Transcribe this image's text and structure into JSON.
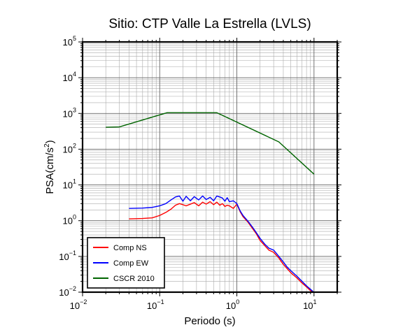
{
  "chart_data": {
    "type": "line",
    "title": "Sitio: CTP Valle La Estrella (LVLS)",
    "xlabel": "Periodo (s)",
    "ylabel": {
      "prefix": "PSA(cm/s",
      "sup": "2",
      "suffix": ")"
    },
    "x_scale": "log",
    "y_scale": "log",
    "xlim": [
      0.01,
      20
    ],
    "ylim": [
      0.01,
      100000
    ],
    "x_ticks": [
      {
        "base": "10",
        "exp": "−2",
        "value": 0.01
      },
      {
        "base": "10",
        "exp": "−1",
        "value": 0.1
      },
      {
        "base": "10",
        "exp": "0",
        "value": 1
      },
      {
        "base": "10",
        "exp": "1",
        "value": 10
      }
    ],
    "y_ticks": [
      {
        "base": "10",
        "exp": "−2",
        "value": 0.01
      },
      {
        "base": "10",
        "exp": "−1",
        "value": 0.1
      },
      {
        "base": "10",
        "exp": "0",
        "value": 1
      },
      {
        "base": "10",
        "exp": "1",
        "value": 10
      },
      {
        "base": "10",
        "exp": "2",
        "value": 100
      },
      {
        "base": "10",
        "exp": "3",
        "value": 1000
      },
      {
        "base": "10",
        "exp": "4",
        "value": 10000
      },
      {
        "base": "10",
        "exp": "5",
        "value": 100000
      }
    ],
    "grid": true,
    "legend_position": "bottom-left",
    "series": [
      {
        "name": "Comp NS",
        "color": "#ff0000",
        "x": [
          0.04,
          0.06,
          0.08,
          0.1,
          0.12,
          0.14,
          0.16,
          0.18,
          0.2,
          0.22,
          0.25,
          0.28,
          0.32,
          0.36,
          0.4,
          0.45,
          0.5,
          0.55,
          0.6,
          0.65,
          0.7,
          0.75,
          0.8,
          0.9,
          1.0,
          1.1,
          1.2,
          1.4,
          1.6,
          1.8,
          2.0,
          2.3,
          2.6,
          3.0,
          3.5,
          4.0,
          4.5,
          5.0,
          6.0,
          7.0,
          8.0,
          9.0,
          10.0
        ],
        "y": [
          1.12,
          1.15,
          1.2,
          1.4,
          1.7,
          2.1,
          2.7,
          3.0,
          2.8,
          2.6,
          2.9,
          3.2,
          2.6,
          3.3,
          2.9,
          3.4,
          2.8,
          3.3,
          2.7,
          3.0,
          2.5,
          2.7,
          2.6,
          2.2,
          2.9,
          1.8,
          1.3,
          0.9,
          0.6,
          0.42,
          0.28,
          0.2,
          0.15,
          0.13,
          0.09,
          0.06,
          0.045,
          0.035,
          0.025,
          0.018,
          0.014,
          0.011,
          0.0095
        ]
      },
      {
        "name": "Comp EW",
        "color": "#0000ff",
        "x": [
          0.04,
          0.06,
          0.08,
          0.1,
          0.12,
          0.14,
          0.16,
          0.18,
          0.2,
          0.22,
          0.25,
          0.28,
          0.32,
          0.36,
          0.4,
          0.45,
          0.5,
          0.55,
          0.6,
          0.65,
          0.7,
          0.75,
          0.8,
          0.9,
          1.0,
          1.1,
          1.2,
          1.4,
          1.6,
          1.8,
          2.0,
          2.3,
          2.6,
          3.0,
          3.5,
          4.0,
          4.5,
          5.0,
          6.0,
          7.0,
          8.0,
          9.0,
          10.0
        ],
        "y": [
          2.2,
          2.25,
          2.35,
          2.6,
          3.0,
          3.8,
          4.6,
          4.9,
          3.5,
          4.8,
          3.6,
          4.7,
          3.8,
          4.9,
          3.9,
          4.5,
          3.6,
          4.9,
          4.6,
          4.3,
          3.5,
          4.4,
          3.4,
          3.6,
          3.0,
          1.9,
          1.4,
          0.95,
          0.65,
          0.45,
          0.32,
          0.22,
          0.17,
          0.15,
          0.1,
          0.07,
          0.05,
          0.04,
          0.028,
          0.02,
          0.015,
          0.012,
          0.0098
        ]
      },
      {
        "name": "CSCR 2010",
        "color": "#006400",
        "x": [
          0.02,
          0.03,
          0.125,
          0.55,
          3.5,
          10.0
        ],
        "y": [
          410,
          420,
          1050,
          1050,
          160,
          20
        ]
      }
    ]
  }
}
